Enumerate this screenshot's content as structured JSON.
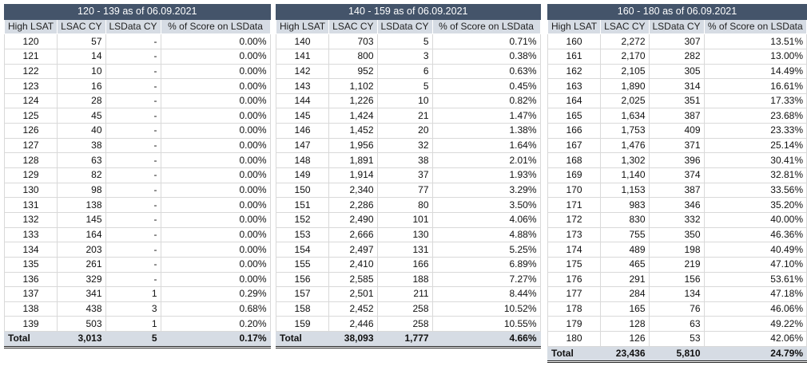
{
  "tables": [
    {
      "title": "120 - 139 as of 06.09.2021",
      "headers": [
        "High LSAT",
        "LSAC CY",
        "LSData CY",
        "% of Score on LSData"
      ],
      "rows": [
        [
          "120",
          "57",
          "-",
          "0.00%"
        ],
        [
          "121",
          "14",
          "-",
          "0.00%"
        ],
        [
          "122",
          "10",
          "-",
          "0.00%"
        ],
        [
          "123",
          "16",
          "-",
          "0.00%"
        ],
        [
          "124",
          "28",
          "-",
          "0.00%"
        ],
        [
          "125",
          "45",
          "-",
          "0.00%"
        ],
        [
          "126",
          "40",
          "-",
          "0.00%"
        ],
        [
          "127",
          "38",
          "-",
          "0.00%"
        ],
        [
          "128",
          "63",
          "-",
          "0.00%"
        ],
        [
          "129",
          "82",
          "-",
          "0.00%"
        ],
        [
          "130",
          "98",
          "-",
          "0.00%"
        ],
        [
          "131",
          "138",
          "-",
          "0.00%"
        ],
        [
          "132",
          "145",
          "-",
          "0.00%"
        ],
        [
          "133",
          "164",
          "-",
          "0.00%"
        ],
        [
          "134",
          "203",
          "-",
          "0.00%"
        ],
        [
          "135",
          "261",
          "-",
          "0.00%"
        ],
        [
          "136",
          "329",
          "-",
          "0.00%"
        ],
        [
          "137",
          "341",
          "1",
          "0.29%"
        ],
        [
          "138",
          "438",
          "3",
          "0.68%"
        ],
        [
          "139",
          "503",
          "1",
          "0.20%"
        ]
      ],
      "total": [
        "Total",
        "3,013",
        "5",
        "0.17%"
      ]
    },
    {
      "title": "140 - 159 as of 06.09.2021",
      "headers": [
        "High LSAT",
        "LSAC CY",
        "LSData CY",
        "% of Score on LSData"
      ],
      "rows": [
        [
          "140",
          "703",
          "5",
          "0.71%"
        ],
        [
          "141",
          "800",
          "3",
          "0.38%"
        ],
        [
          "142",
          "952",
          "6",
          "0.63%"
        ],
        [
          "143",
          "1,102",
          "5",
          "0.45%"
        ],
        [
          "144",
          "1,226",
          "10",
          "0.82%"
        ],
        [
          "145",
          "1,424",
          "21",
          "1.47%"
        ],
        [
          "146",
          "1,452",
          "20",
          "1.38%"
        ],
        [
          "147",
          "1,956",
          "32",
          "1.64%"
        ],
        [
          "148",
          "1,891",
          "38",
          "2.01%"
        ],
        [
          "149",
          "1,914",
          "37",
          "1.93%"
        ],
        [
          "150",
          "2,340",
          "77",
          "3.29%"
        ],
        [
          "151",
          "2,286",
          "80",
          "3.50%"
        ],
        [
          "152",
          "2,490",
          "101",
          "4.06%"
        ],
        [
          "153",
          "2,666",
          "130",
          "4.88%"
        ],
        [
          "154",
          "2,497",
          "131",
          "5.25%"
        ],
        [
          "155",
          "2,410",
          "166",
          "6.89%"
        ],
        [
          "156",
          "2,585",
          "188",
          "7.27%"
        ],
        [
          "157",
          "2,501",
          "211",
          "8.44%"
        ],
        [
          "158",
          "2,452",
          "258",
          "10.52%"
        ],
        [
          "159",
          "2,446",
          "258",
          "10.55%"
        ]
      ],
      "total": [
        "Total",
        "38,093",
        "1,777",
        "4.66%"
      ]
    },
    {
      "title": "160 - 180 as of 06.09.2021",
      "headers": [
        "High LSAT",
        "LSAC CY",
        "LSData CY",
        "% of Score on LSData"
      ],
      "rows": [
        [
          "160",
          "2,272",
          "307",
          "13.51%"
        ],
        [
          "161",
          "2,170",
          "282",
          "13.00%"
        ],
        [
          "162",
          "2,105",
          "305",
          "14.49%"
        ],
        [
          "163",
          "1,890",
          "314",
          "16.61%"
        ],
        [
          "164",
          "2,025",
          "351",
          "17.33%"
        ],
        [
          "165",
          "1,634",
          "387",
          "23.68%"
        ],
        [
          "166",
          "1,753",
          "409",
          "23.33%"
        ],
        [
          "167",
          "1,476",
          "371",
          "25.14%"
        ],
        [
          "168",
          "1,302",
          "396",
          "30.41%"
        ],
        [
          "169",
          "1,140",
          "374",
          "32.81%"
        ],
        [
          "170",
          "1,153",
          "387",
          "33.56%"
        ],
        [
          "171",
          "983",
          "346",
          "35.20%"
        ],
        [
          "172",
          "830",
          "332",
          "40.00%"
        ],
        [
          "173",
          "755",
          "350",
          "46.36%"
        ],
        [
          "174",
          "489",
          "198",
          "40.49%"
        ],
        [
          "175",
          "465",
          "219",
          "47.10%"
        ],
        [
          "176",
          "291",
          "156",
          "53.61%"
        ],
        [
          "177",
          "284",
          "134",
          "47.18%"
        ],
        [
          "178",
          "165",
          "76",
          "46.06%"
        ],
        [
          "179",
          "128",
          "63",
          "49.22%"
        ],
        [
          "180",
          "126",
          "53",
          "42.06%"
        ]
      ],
      "total": [
        "Total",
        "23,436",
        "5,810",
        "24.79%"
      ]
    }
  ]
}
